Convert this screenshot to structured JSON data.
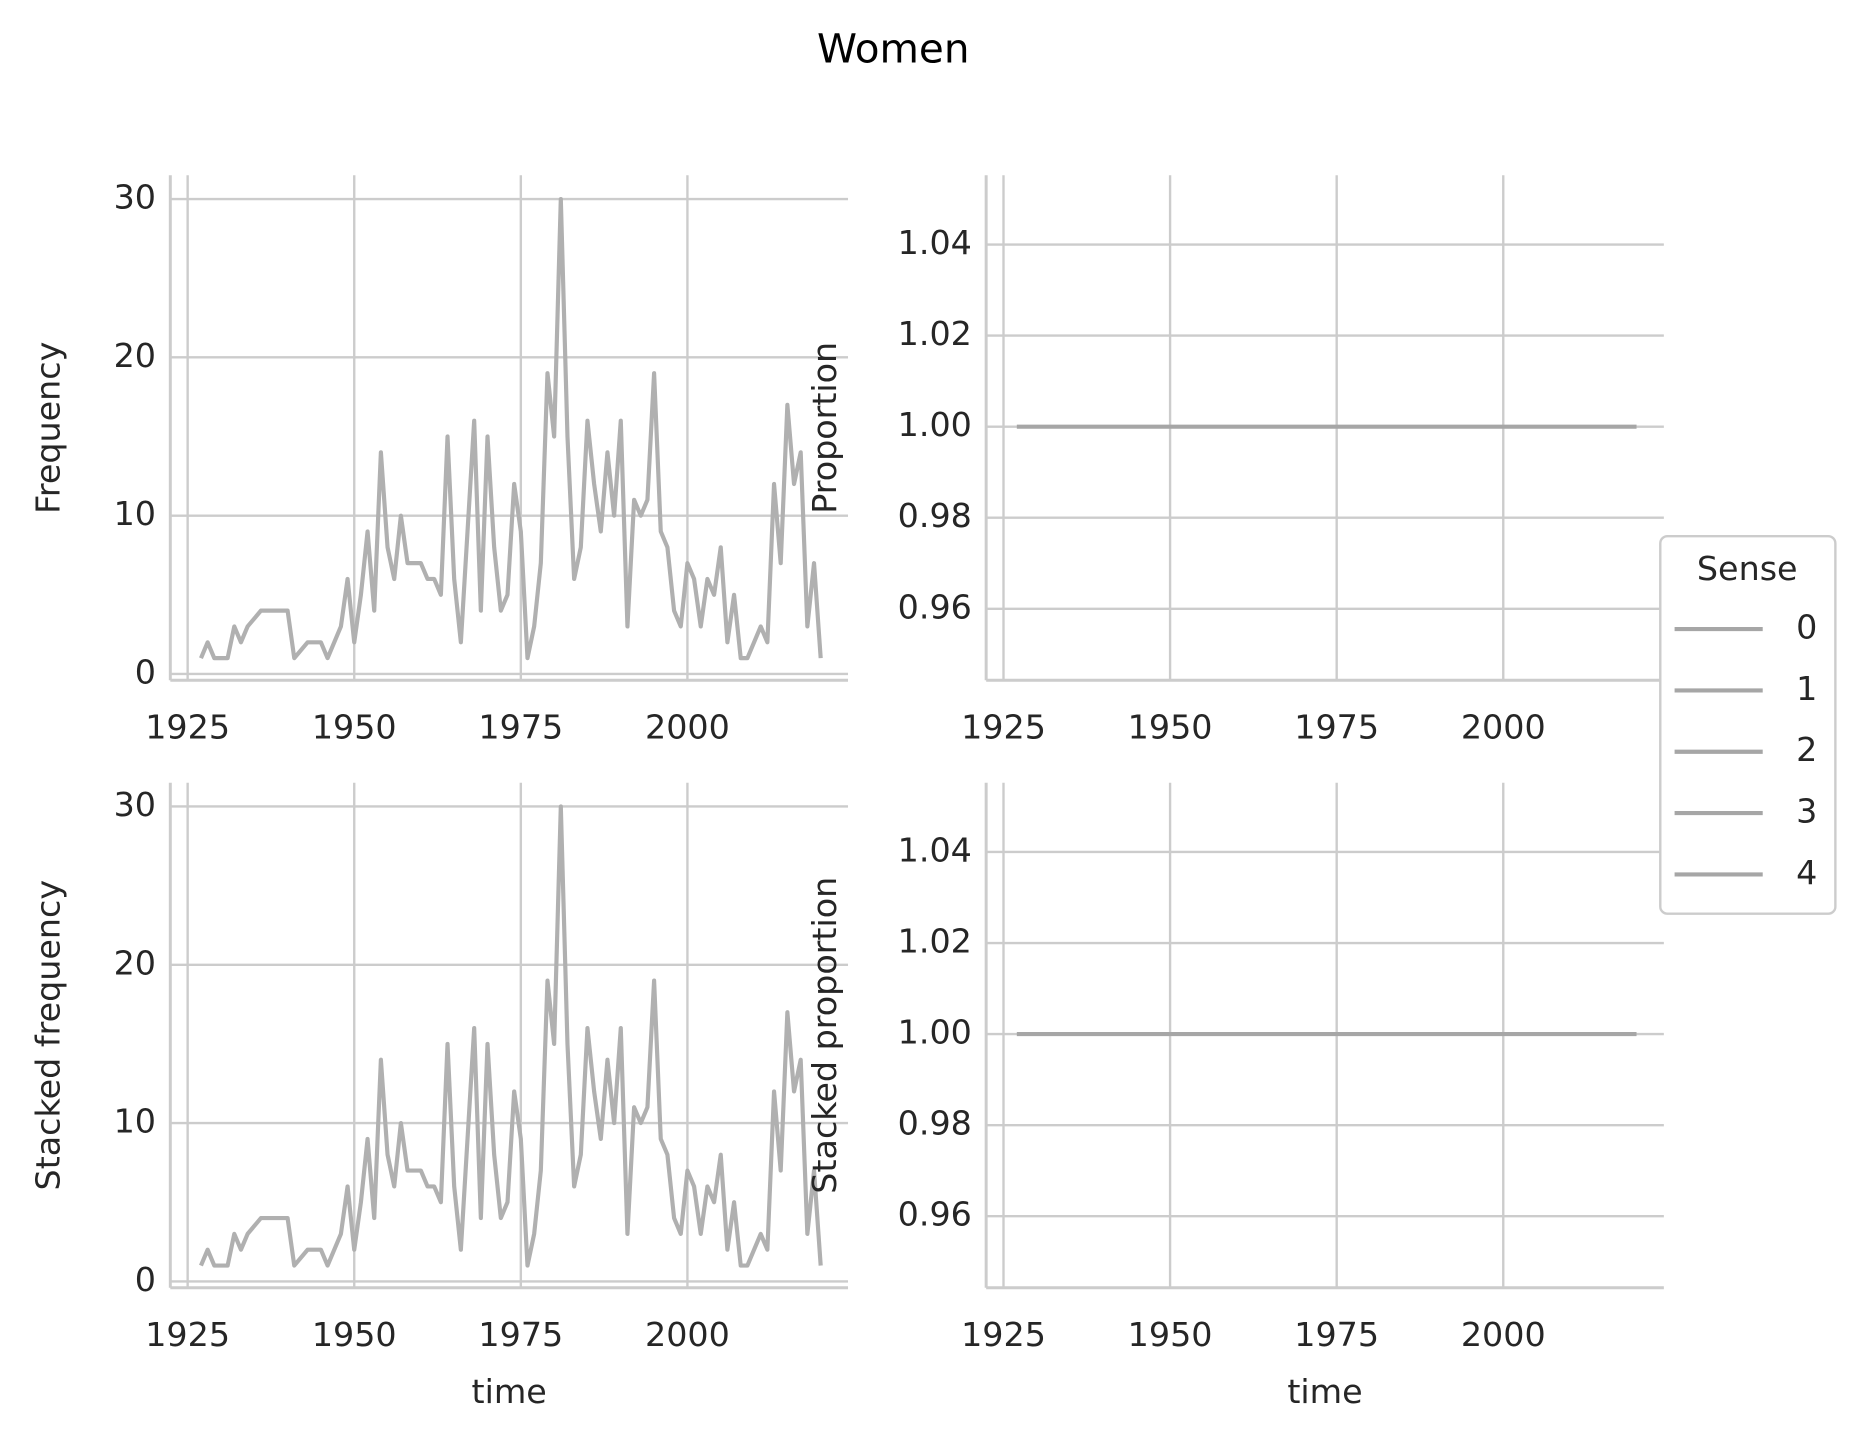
{
  "title": "Women",
  "legend": {
    "title": "Sense",
    "entries": [
      "0",
      "1",
      "2",
      "3",
      "4"
    ],
    "color": "#a6a6a6"
  },
  "chart_data": [
    {
      "type": "line",
      "ylabel": "Frequency",
      "color": "#b0b0b0",
      "grid": true,
      "x": [
        1927,
        1928,
        1929,
        1930,
        1931,
        1932,
        1933,
        1934,
        1936,
        1940,
        1941,
        1943,
        1945,
        1946,
        1948,
        1949,
        1950,
        1951,
        1952,
        1953,
        1954,
        1955,
        1956,
        1957,
        1958,
        1960,
        1961,
        1962,
        1963,
        1964,
        1965,
        1966,
        1968,
        1969,
        1970,
        1971,
        1972,
        1973,
        1974,
        1975,
        1976,
        1977,
        1978,
        1979,
        1980,
        1981,
        1982,
        1983,
        1984,
        1985,
        1986,
        1987,
        1988,
        1989,
        1990,
        1991,
        1992,
        1993,
        1994,
        1995,
        1996,
        1997,
        1998,
        1999,
        2000,
        2001,
        2002,
        2003,
        2004,
        2005,
        2006,
        2007,
        2008,
        2009,
        2011,
        2012,
        2013,
        2014,
        2015,
        2016,
        2017,
        2018,
        2019,
        2020
      ],
      "values": [
        1,
        2,
        1,
        1,
        1,
        3,
        2,
        3,
        4,
        4,
        1,
        2,
        2,
        1,
        3,
        6,
        2,
        5,
        9,
        4,
        14,
        8,
        6,
        10,
        7,
        7,
        6,
        6,
        5,
        15,
        6,
        2,
        16,
        4,
        15,
        8,
        4,
        5,
        12,
        9,
        1,
        3,
        7,
        19,
        15,
        30,
        15,
        6,
        8,
        16,
        12,
        9,
        14,
        10,
        16,
        3,
        11,
        10,
        11,
        19,
        9,
        8,
        4,
        3,
        7,
        6,
        3,
        6,
        5,
        8,
        2,
        5,
        1,
        1,
        3,
        2,
        12,
        7,
        17,
        12,
        14,
        3,
        7,
        1
      ],
      "xlim": [
        1922.4,
        2024.1
      ],
      "xticks": [
        1925,
        1950,
        1975,
        2000
      ],
      "ylim": [
        -0.4,
        31.5
      ],
      "yticks": [
        0,
        10,
        20,
        30
      ]
    },
    {
      "type": "line",
      "ylabel": "Proportion",
      "color": "#a6a6a6",
      "grid": true,
      "x": [
        1927,
        2020
      ],
      "values": [
        1,
        1
      ],
      "xlim": [
        1922.4,
        2024.1
      ],
      "xticks": [
        1925,
        1950,
        1975,
        2000
      ],
      "ylim": [
        0.9443,
        1.0552
      ],
      "yticks": [
        {
          "value": 0.96,
          "label": "0.96"
        },
        {
          "value": 0.98,
          "label": "0.98"
        },
        {
          "value": 1,
          "label": "1.00"
        },
        {
          "value": 1.02,
          "label": "1.02"
        },
        {
          "value": 1.04,
          "label": "1.04"
        }
      ]
    },
    {
      "type": "line",
      "ylabel": "Stacked frequency",
      "xlabel": "time",
      "color": "#b0b0b0",
      "grid": true,
      "x": [
        1927,
        1928,
        1929,
        1930,
        1931,
        1932,
        1933,
        1934,
        1936,
        1940,
        1941,
        1943,
        1945,
        1946,
        1948,
        1949,
        1950,
        1951,
        1952,
        1953,
        1954,
        1955,
        1956,
        1957,
        1958,
        1960,
        1961,
        1962,
        1963,
        1964,
        1965,
        1966,
        1968,
        1969,
        1970,
        1971,
        1972,
        1973,
        1974,
        1975,
        1976,
        1977,
        1978,
        1979,
        1980,
        1981,
        1982,
        1983,
        1984,
        1985,
        1986,
        1987,
        1988,
        1989,
        1990,
        1991,
        1992,
        1993,
        1994,
        1995,
        1996,
        1997,
        1998,
        1999,
        2000,
        2001,
        2002,
        2003,
        2004,
        2005,
        2006,
        2007,
        2008,
        2009,
        2011,
        2012,
        2013,
        2014,
        2015,
        2016,
        2017,
        2018,
        2019,
        2020
      ],
      "values": [
        1,
        2,
        1,
        1,
        1,
        3,
        2,
        3,
        4,
        4,
        1,
        2,
        2,
        1,
        3,
        6,
        2,
        5,
        9,
        4,
        14,
        8,
        6,
        10,
        7,
        7,
        6,
        6,
        5,
        15,
        6,
        2,
        16,
        4,
        15,
        8,
        4,
        5,
        12,
        9,
        1,
        3,
        7,
        19,
        15,
        30,
        15,
        6,
        8,
        16,
        12,
        9,
        14,
        10,
        16,
        3,
        11,
        10,
        11,
        19,
        9,
        8,
        4,
        3,
        7,
        6,
        3,
        6,
        5,
        8,
        2,
        5,
        1,
        1,
        3,
        2,
        12,
        7,
        17,
        12,
        14,
        3,
        7,
        1
      ],
      "xlim": [
        1922.4,
        2024.1
      ],
      "xticks": [
        1925,
        1950,
        1975,
        2000
      ],
      "ylim": [
        -0.4,
        31.5
      ],
      "yticks": [
        0,
        10,
        20,
        30
      ]
    },
    {
      "type": "line",
      "ylabel": "Stacked proportion",
      "xlabel": "time",
      "color": "#a6a6a6",
      "grid": true,
      "x": [
        1927,
        2020
      ],
      "values": [
        1,
        1
      ],
      "xlim": [
        1922.4,
        2024.1
      ],
      "xticks": [
        1925,
        1950,
        1975,
        2000
      ],
      "ylim": [
        0.9443,
        1.0552
      ],
      "yticks": [
        {
          "value": 0.96,
          "label": "0.96"
        },
        {
          "value": 0.98,
          "label": "0.98"
        },
        {
          "value": 1,
          "label": "1.00"
        },
        {
          "value": 1.02,
          "label": "1.02"
        },
        {
          "value": 1.04,
          "label": "1.04"
        }
      ]
    }
  ]
}
